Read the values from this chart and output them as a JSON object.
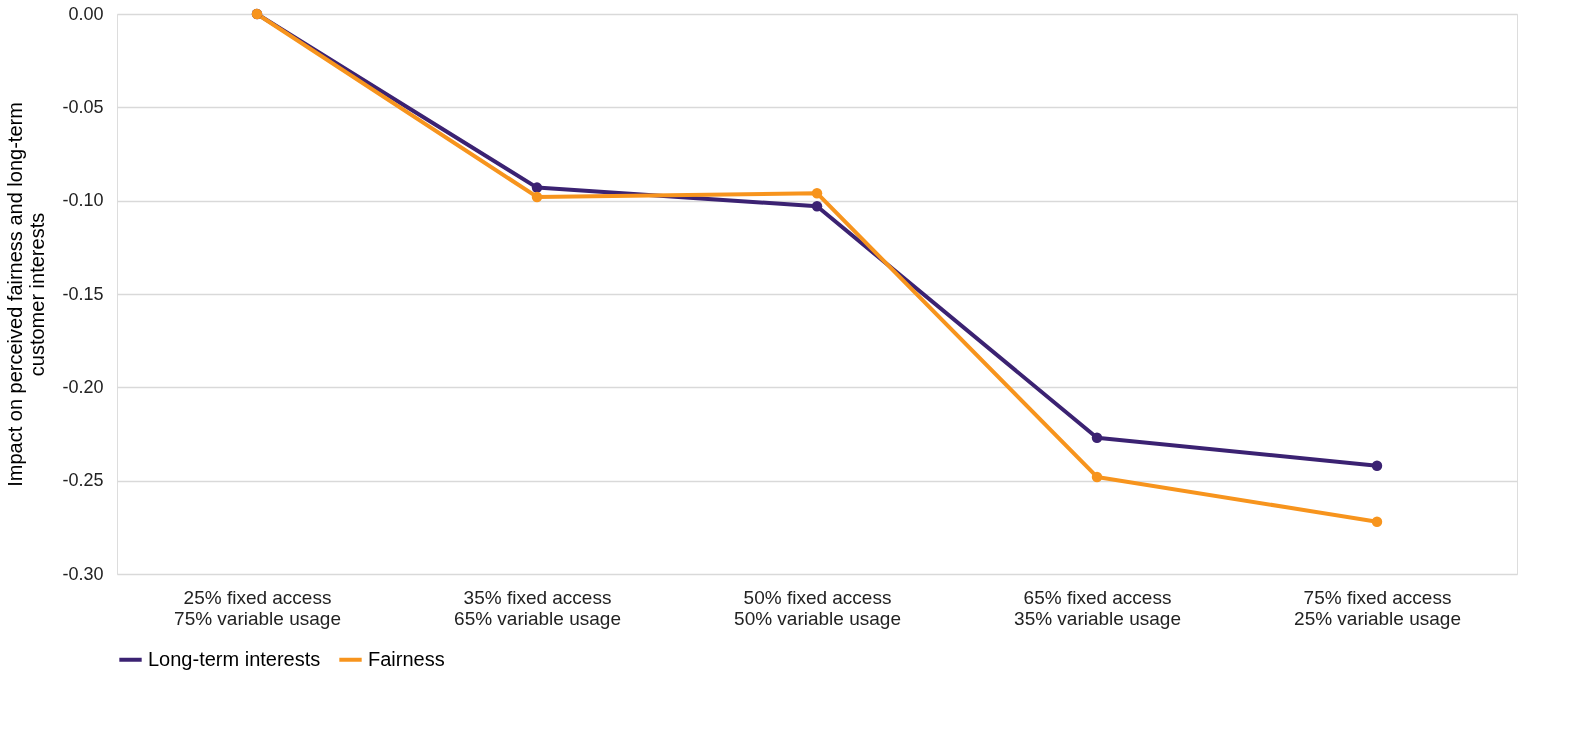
{
  "chart_data": {
    "type": "line",
    "ylabel": "Impact on perceived fairness and long-term\ncustomer interests",
    "categories": [
      "25% fixed access\n75% variable usage",
      "35% fixed access\n65% variable usage",
      "50% fixed access\n50% variable usage",
      "65% fixed access\n35% variable usage",
      "75% fixed access\n25% variable usage"
    ],
    "series": [
      {
        "name": "Long-term interests",
        "color": "#3b2272",
        "values": [
          0.0,
          -0.093,
          -0.103,
          -0.227,
          -0.242
        ]
      },
      {
        "name": "Fairness",
        "color": "#f7941d",
        "values": [
          0.0,
          -0.098,
          -0.096,
          -0.248,
          -0.272
        ]
      }
    ],
    "ylim": [
      -0.3,
      0.0
    ],
    "yticks": [
      {
        "value": -0.3,
        "label": "-0.30"
      },
      {
        "value": -0.25,
        "label": "-0.25"
      },
      {
        "value": -0.2,
        "label": "-0.20"
      },
      {
        "value": -0.15,
        "label": "-0.15"
      },
      {
        "value": -0.1,
        "label": "-0.10"
      },
      {
        "value": -0.05,
        "label": "-0.05"
      },
      {
        "value": 0.0,
        "label": "0.00"
      }
    ],
    "grid": "y",
    "legend": "bottom",
    "marker": "circle",
    "line_style": "solid"
  }
}
